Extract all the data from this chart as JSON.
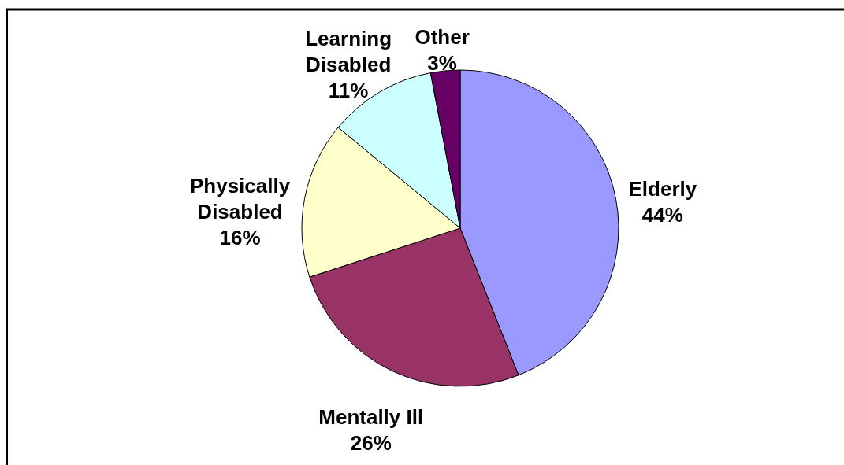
{
  "chart_data": {
    "type": "pie",
    "categories": [
      "Elderly",
      "Mentally Ill",
      "Physically Disabled",
      "Learning Disabled",
      "Other"
    ],
    "values": [
      44,
      26,
      16,
      11,
      3
    ],
    "colors": [
      "#9999ff",
      "#993366",
      "#ffffcc",
      "#ccffff",
      "#660066"
    ],
    "value_labels": [
      "44%",
      "26%",
      "16%",
      "11%",
      "3%"
    ]
  }
}
